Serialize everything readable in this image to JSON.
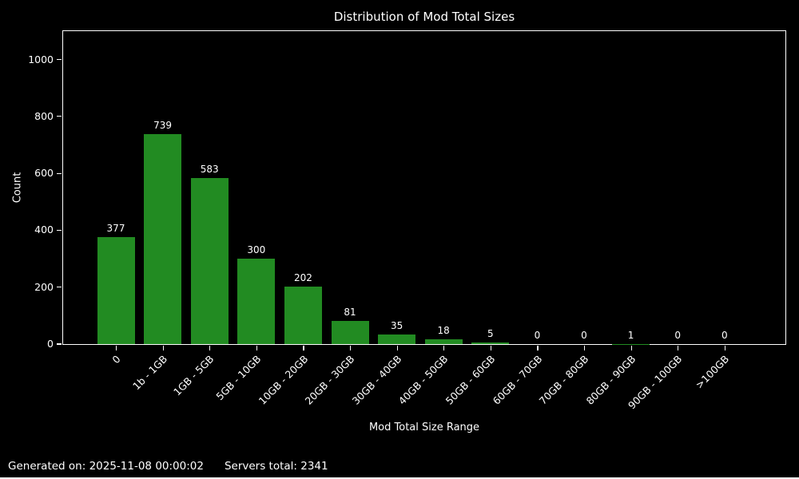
{
  "title": "Distribution of Mod Total Sizes",
  "chart_data": {
    "type": "bar",
    "title": "Distribution of Mod Total Sizes",
    "xlabel": "Mod Total Size Range",
    "ylabel": "Count",
    "categories": [
      "0",
      "1b - 1GB",
      "1GB - 5GB",
      "5GB - 10GB",
      "10GB - 20GB",
      "20GB - 30GB",
      "30GB - 40GB",
      "40GB - 50GB",
      "50GB - 60GB",
      "60GB - 70GB",
      "70GB - 80GB",
      "80GB - 90GB",
      "90GB - 100GB",
      ">100GB"
    ],
    "values": [
      377,
      739,
      583,
      300,
      202,
      81,
      35,
      18,
      5,
      0,
      0,
      1,
      0,
      0
    ],
    "bar_labels_shown": true,
    "yticks": [
      0,
      200,
      400,
      600,
      800,
      1000
    ],
    "ylim": [
      0,
      1100
    ],
    "xtick_rotation": 45,
    "grid": false,
    "legend": "none",
    "bar_color": "#228B22",
    "background_color": "#000000",
    "text_color": "#FFFFFF"
  },
  "footer": {
    "generated": "Generated on: 2025-11-08 00:00:02",
    "servers_total": "Servers total: 2341"
  }
}
